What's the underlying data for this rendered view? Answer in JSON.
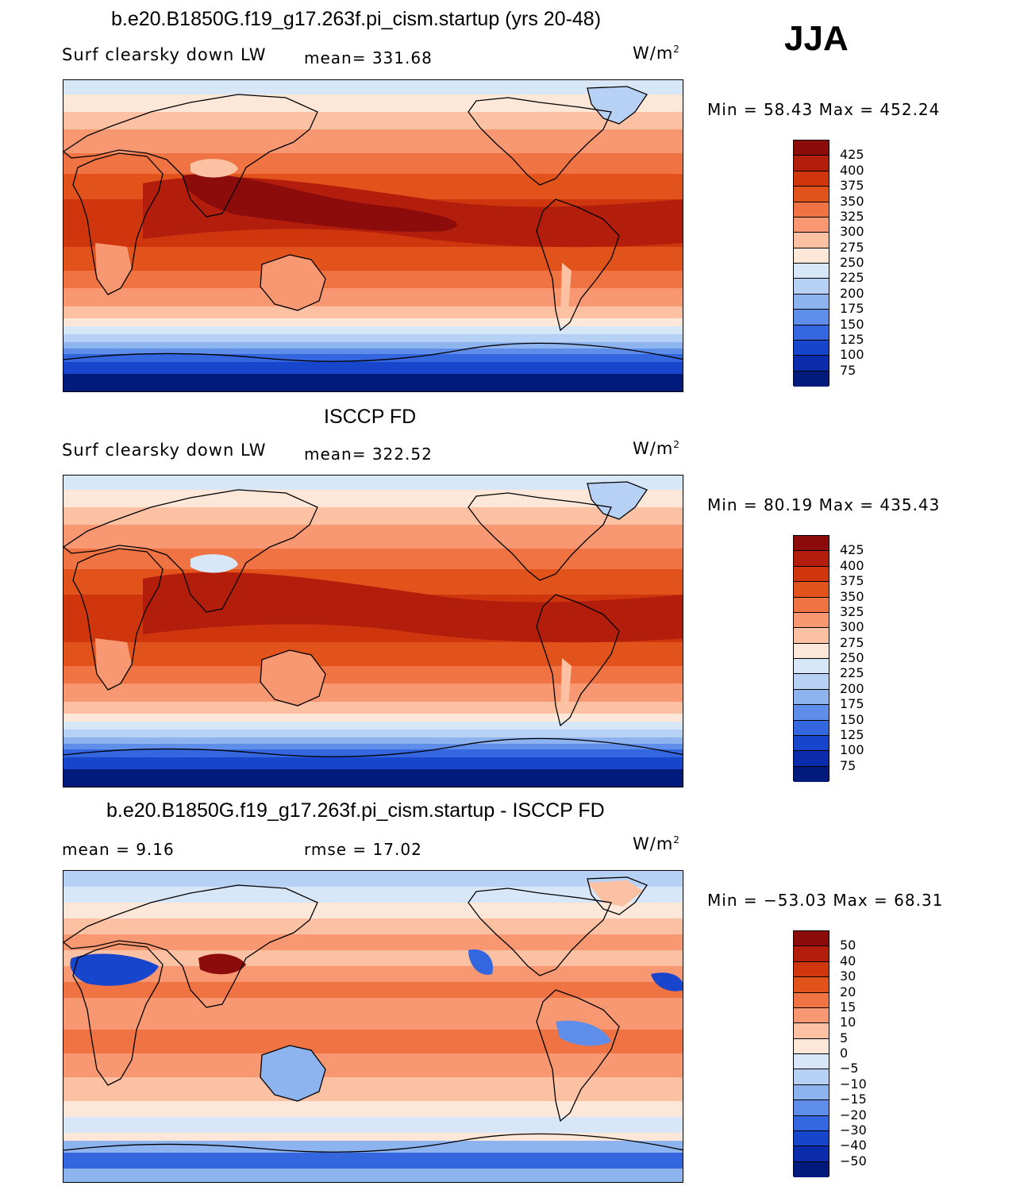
{
  "season": "JJA",
  "panels": [
    {
      "title": "b.e20.B1850G.f19_g17.263f.pi_cism.startup (yrs 20-48)",
      "variable": "Surf clearsky down LW",
      "stat1": "mean= 331.68",
      "stat2": "",
      "units_base": "W/m",
      "units_exp": "2",
      "minmax": "Min =  58.43 Max = 452.24",
      "colorbar": {
        "labels": [
          "425",
          "400",
          "375",
          "350",
          "325",
          "300",
          "275",
          "250",
          "225",
          "200",
          "175",
          "150",
          "125",
          "100",
          "75"
        ],
        "colors": [
          "#8c0c0c",
          "#b31d0c",
          "#cf360e",
          "#e2531c",
          "#ef7343",
          "#f79872",
          "#fbc1a2",
          "#fde7d8",
          "#d7e7f8",
          "#b7d1f5",
          "#8eb4f0",
          "#5f8eea",
          "#3466e0",
          "#1745cc",
          "#0a2bac",
          "#031a7d"
        ]
      },
      "map_type": "model"
    },
    {
      "title": "ISCCP FD",
      "variable": "Surf clearsky down LW",
      "stat1": "mean= 322.52",
      "stat2": "",
      "units_base": "W/m",
      "units_exp": "2",
      "minmax": "Min =  80.19 Max = 435.43",
      "colorbar": {
        "labels": [
          "425",
          "400",
          "375",
          "350",
          "325",
          "300",
          "275",
          "250",
          "225",
          "200",
          "175",
          "150",
          "125",
          "100",
          "75"
        ],
        "colors": [
          "#8c0c0c",
          "#b31d0c",
          "#cf360e",
          "#e2531c",
          "#ef7343",
          "#f79872",
          "#fbc1a2",
          "#fde7d8",
          "#d7e7f8",
          "#b7d1f5",
          "#8eb4f0",
          "#5f8eea",
          "#3466e0",
          "#1745cc",
          "#0a2bac",
          "#031a7d"
        ]
      },
      "map_type": "obs"
    },
    {
      "title": "b.e20.B1850G.f19_g17.263f.pi_cism.startup - ISCCP FD",
      "variable": "mean =    9.16",
      "stat1": "rmse =    17.02",
      "stat2": "",
      "units_base": "W/m",
      "units_exp": "2",
      "minmax": "Min = −53.03 Max =   68.31",
      "colorbar": {
        "labels": [
          "50",
          "40",
          "30",
          "20",
          "15",
          "10",
          "5",
          "0",
          "−5",
          "−10",
          "−15",
          "−20",
          "−30",
          "−40",
          "−50"
        ],
        "colors": [
          "#8c0c0c",
          "#b31d0c",
          "#cf360e",
          "#e2531c",
          "#ef7343",
          "#f79872",
          "#fbc1a2",
          "#fde7d8",
          "#d7e7f8",
          "#b7d1f5",
          "#8eb4f0",
          "#5f8eea",
          "#3466e0",
          "#1745cc",
          "#0a2bac",
          "#031a7d"
        ]
      },
      "map_type": "diff"
    }
  ]
}
